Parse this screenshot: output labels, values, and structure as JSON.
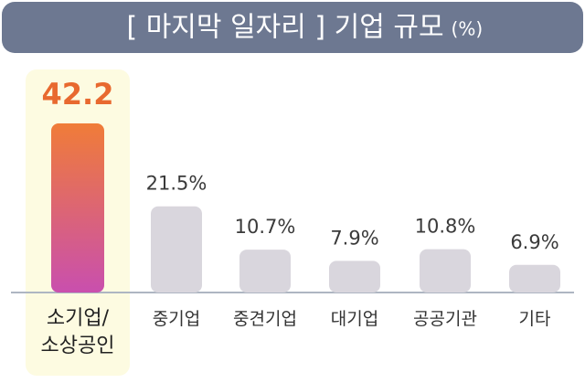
{
  "chart_data": {
    "type": "bar",
    "title": "[ 마지막 일자리 ] 기업 규모",
    "unit": "(%)",
    "categories": [
      "소기업/\n소상공인",
      "중기업",
      "중견기업",
      "대기업",
      "공공기관",
      "기타"
    ],
    "values": [
      42.2,
      21.5,
      10.7,
      7.9,
      10.8,
      6.9
    ],
    "value_labels": [
      "42.2",
      "21.5%",
      "10.7%",
      "7.9%",
      "10.8%",
      "6.9%"
    ],
    "color": "#d9d6dd",
    "highlight_index": 0,
    "highlight_color": [
      "#f07c38",
      "#c94fae"
    ],
    "highlight_label_color": "#e8692f"
  }
}
